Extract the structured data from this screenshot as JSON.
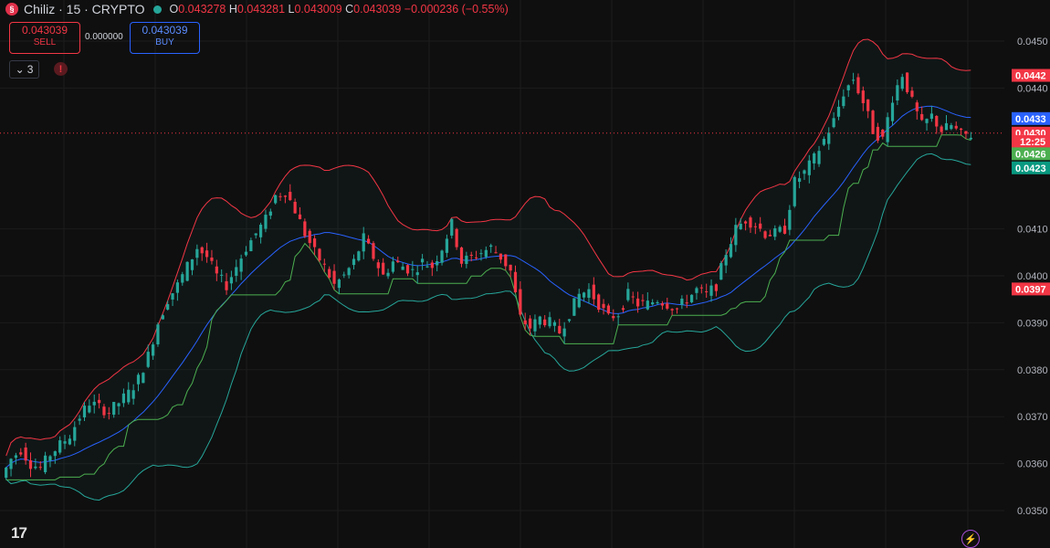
{
  "header": {
    "logo_glyph": "§",
    "symbol": "Chiliz · 15 · CRYPTO",
    "o_label": "O",
    "o_value": "0.043278",
    "h_label": "H",
    "h_value": "0.043281",
    "l_label": "L",
    "l_value": "0.043009",
    "c_label": "C",
    "c_value": "0.043039",
    "change": "−0.000236 (−0.55%)"
  },
  "trade": {
    "sell_price": "0.043039",
    "sell_label": "SELL",
    "spread": "0.000000",
    "buy_price": "0.043039",
    "buy_label": "BUY"
  },
  "indicators": {
    "collapse_count": "3",
    "alert_glyph": "!"
  },
  "footer": {
    "logo_text": "17",
    "bolt_glyph": "⚡"
  },
  "colors": {
    "up": "#26a69a",
    "down": "#f23645",
    "upper_band": "#f23645",
    "lower_band": "#26a69a",
    "basis": "#2962ff",
    "trail": "#4caf50",
    "background": "#0f0f0f"
  },
  "chart_data": {
    "type": "candlestick",
    "title": "",
    "xlabel": "",
    "ylabel": "",
    "ylim": [
      0.0347,
      0.0451
    ],
    "y_ticks": [
      "0.0450",
      "0.0440",
      "0.0410",
      "0.0400",
      "0.0390",
      "0.0380",
      "0.0370",
      "0.0360",
      "0.0350"
    ],
    "price_labels": [
      {
        "text": "0.0442",
        "value": 0.04427,
        "color": "#f23645"
      },
      {
        "text": "0.0433",
        "value": 0.04335,
        "color": "#2962ff"
      },
      {
        "text": "0.0430",
        "value": 0.04304,
        "color": "#f23645"
      },
      {
        "text": "12:25",
        "value": 0.04286,
        "color": "#f23645"
      },
      {
        "text": "0.0426",
        "value": 0.0426,
        "color": "#4caf50"
      },
      {
        "text": "0.0423",
        "value": 0.0423,
        "color": "#089981"
      },
      {
        "text": "0.0397",
        "value": 0.03972,
        "color": "#f23645"
      }
    ],
    "current_price": 0.04304,
    "close_series": [
      0.0357,
      0.0361,
      0.0363,
      0.036,
      0.0359,
      0.0362,
      0.0364,
      0.0366,
      0.037,
      0.0373,
      0.0372,
      0.0371,
      0.0373,
      0.0375,
      0.0378,
      0.0383,
      0.039,
      0.0395,
      0.0398,
      0.0402,
      0.0406,
      0.0404,
      0.04,
      0.0398,
      0.0402,
      0.0406,
      0.0409,
      0.0412,
      0.0417,
      0.0418,
      0.0414,
      0.0409,
      0.0405,
      0.0402,
      0.0398,
      0.04,
      0.0403,
      0.0408,
      0.0404,
      0.04,
      0.0403,
      0.0402,
      0.0401,
      0.0403,
      0.0402,
      0.0406,
      0.0411,
      0.0403,
      0.0404,
      0.0405,
      0.0406,
      0.0404,
      0.0401,
      0.0391,
      0.0389,
      0.0391,
      0.039,
      0.0388,
      0.0392,
      0.0396,
      0.0397,
      0.0394,
      0.0391,
      0.0392,
      0.0396,
      0.0394,
      0.0394,
      0.0395,
      0.0394,
      0.0393,
      0.0395,
      0.0397,
      0.0396,
      0.0398,
      0.0405,
      0.041,
      0.0412,
      0.0411,
      0.0409,
      0.0409,
      0.041,
      0.042,
      0.0422,
      0.0425,
      0.0429,
      0.0433,
      0.0439,
      0.0442,
      0.0437,
      0.0431,
      0.0429,
      0.0438,
      0.0443,
      0.0437,
      0.0432,
      0.0434,
      0.0431,
      0.0432,
      0.043,
      0.043
    ]
  }
}
